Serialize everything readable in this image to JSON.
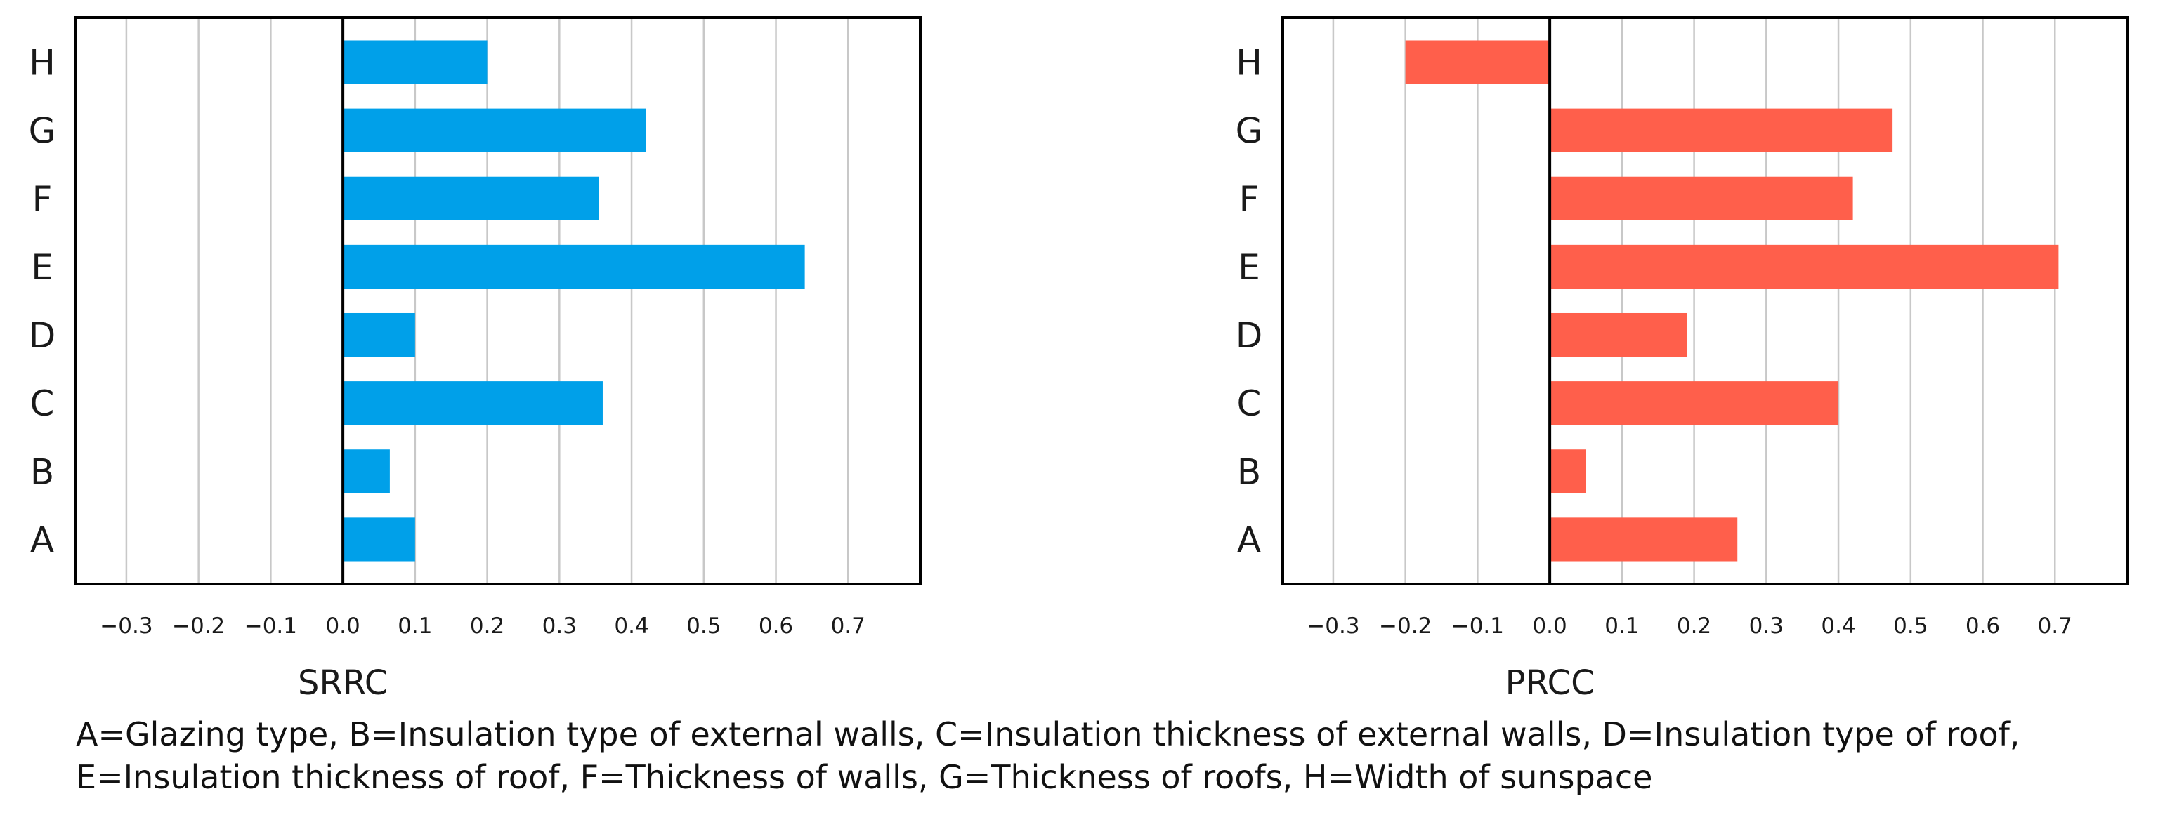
{
  "chart_data": [
    {
      "type": "bar",
      "orientation": "horizontal",
      "title": "",
      "xlabel": "SRRC",
      "ylabel": "",
      "xlim": [
        -0.37,
        0.8
      ],
      "ticks": [
        -0.3,
        -0.2,
        -0.1,
        0.0,
        0.1,
        0.2,
        0.3,
        0.4,
        0.5,
        0.6,
        0.7
      ],
      "tick_labels": [
        "−0.3",
        "−0.2",
        "−0.1",
        "0.0",
        "0.1",
        "0.2",
        "0.3",
        "0.4",
        "0.5",
        "0.6",
        "0.7"
      ],
      "categories": [
        "A",
        "B",
        "C",
        "D",
        "E",
        "F",
        "G",
        "H"
      ],
      "values": [
        0.1,
        0.065,
        0.36,
        0.1,
        0.64,
        0.355,
        0.42,
        0.2
      ],
      "color": "#00A0E9",
      "grid": true
    },
    {
      "type": "bar",
      "orientation": "horizontal",
      "title": "",
      "xlabel": "PRCC",
      "ylabel": "",
      "xlim": [
        -0.37,
        0.8
      ],
      "ticks": [
        -0.3,
        -0.2,
        -0.1,
        0.0,
        0.1,
        0.2,
        0.3,
        0.4,
        0.5,
        0.6,
        0.7
      ],
      "tick_labels": [
        "−0.3",
        "−0.2",
        "−0.1",
        "0.0",
        "0.1",
        "0.2",
        "0.3",
        "0.4",
        "0.5",
        "0.6",
        "0.7"
      ],
      "categories": [
        "A",
        "B",
        "C",
        "D",
        "E",
        "F",
        "G",
        "H"
      ],
      "values": [
        0.26,
        0.05,
        0.4,
        0.19,
        0.705,
        0.42,
        0.475,
        -0.2
      ],
      "color": "#FF5F4B",
      "grid": true
    }
  ],
  "caption": {
    "line1": "A=Glazing type, B=Insulation type of external walls, C=Insulation thickness of external walls, D=Insulation type of roof,",
    "line2": "E=Insulation thickness of roof, F=Thickness of walls, G=Thickness of roofs, H=Width of sunspace"
  }
}
